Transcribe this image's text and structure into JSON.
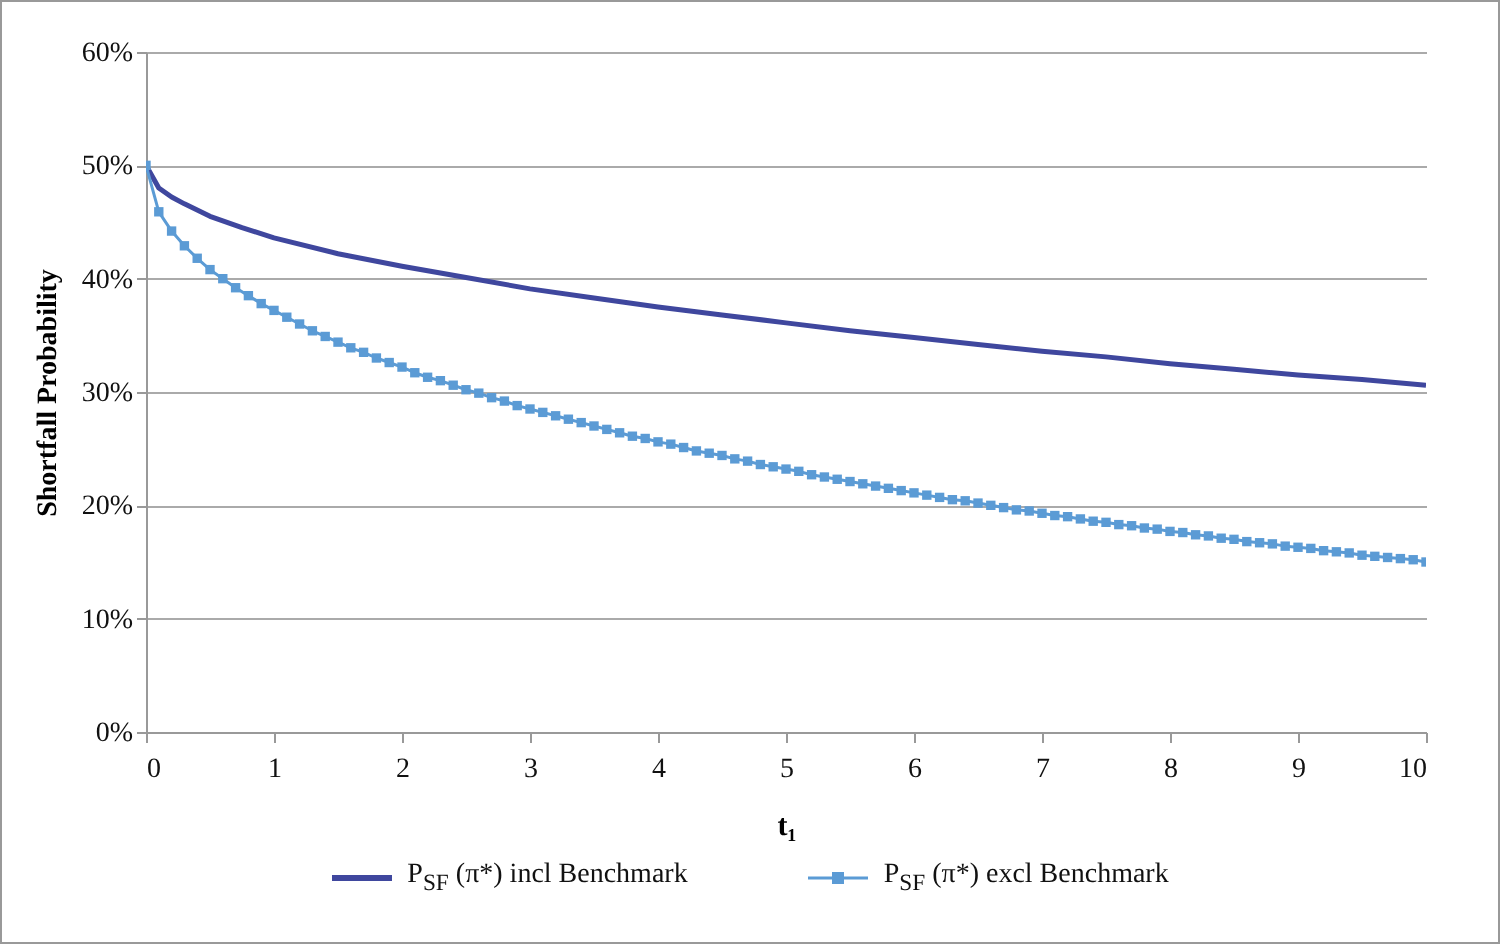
{
  "chart_data": {
    "type": "line",
    "xlabel": "t₁",
    "ylabel": "Shortfall Probability",
    "x": [
      0,
      0.1,
      0.2,
      0.3,
      0.4,
      0.5,
      0.6,
      0.7,
      0.8,
      0.9,
      1,
      1.1,
      1.2,
      1.3,
      1.4,
      1.5,
      1.6,
      1.7,
      1.8,
      1.9,
      2,
      2.1,
      2.2,
      2.3,
      2.4,
      2.5,
      2.6,
      2.7,
      2.8,
      2.9,
      3,
      3.1,
      3.2,
      3.3,
      3.4,
      3.5,
      3.6,
      3.7,
      3.8,
      3.9,
      4,
      4.1,
      4.2,
      4.3,
      4.4,
      4.5,
      4.6,
      4.7,
      4.8,
      4.9,
      5,
      5.1,
      5.2,
      5.3,
      5.4,
      5.5,
      5.6,
      5.7,
      5.8,
      5.9,
      6,
      6.1,
      6.2,
      6.3,
      6.4,
      6.5,
      6.6,
      6.7,
      6.8,
      6.9,
      7,
      7.1,
      7.2,
      7.3,
      7.4,
      7.5,
      7.6,
      7.7,
      7.8,
      7.9,
      8,
      8.1,
      8.2,
      8.3,
      8.4,
      8.5,
      8.6,
      8.7,
      8.8,
      8.9,
      9,
      9.1,
      9.2,
      9.3,
      9.4,
      9.5,
      9.6,
      9.7,
      9.8,
      9.9,
      10
    ],
    "series": [
      {
        "name": "P$_{SF}$ (π*) incl Benchmark",
        "color": "#3f479e",
        "marker": "none",
        "x": [
          0,
          0.1,
          0.2,
          0.3,
          0.5,
          0.75,
          1,
          1.5,
          2,
          2.5,
          3,
          3.5,
          4,
          4.5,
          5,
          5.5,
          6,
          6.5,
          7,
          7.5,
          8,
          8.5,
          9,
          9.5,
          10
        ],
        "values": [
          50,
          48.0,
          47.2,
          46.6,
          45.5,
          44.5,
          43.6,
          42.2,
          41.1,
          40.1,
          39.1,
          38.3,
          37.5,
          36.8,
          36.1,
          35.4,
          34.8,
          34.2,
          33.6,
          33.1,
          32.5,
          32.0,
          31.5,
          31.1,
          30.6
        ]
      },
      {
        "name": "P$_{SF}$ (π*) excl Benchmark",
        "color": "#5b9bd5",
        "marker": "square",
        "values": [
          50,
          45.9,
          44.2,
          42.9,
          41.8,
          40.8,
          40.0,
          39.2,
          38.5,
          37.8,
          37.2,
          36.6,
          36.0,
          35.4,
          34.9,
          34.4,
          33.9,
          33.5,
          33.0,
          32.6,
          32.2,
          31.7,
          31.3,
          31.0,
          30.6,
          30.2,
          29.9,
          29.5,
          29.2,
          28.8,
          28.5,
          28.2,
          27.9,
          27.6,
          27.3,
          27.0,
          26.7,
          26.4,
          26.1,
          25.9,
          25.6,
          25.4,
          25.1,
          24.8,
          24.6,
          24.4,
          24.1,
          23.9,
          23.6,
          23.4,
          23.2,
          23.0,
          22.7,
          22.5,
          22.3,
          22.1,
          21.9,
          21.7,
          21.5,
          21.3,
          21.1,
          20.9,
          20.7,
          20.5,
          20.4,
          20.2,
          20.0,
          19.8,
          19.6,
          19.5,
          19.3,
          19.1,
          19.0,
          18.8,
          18.6,
          18.5,
          18.3,
          18.2,
          18.0,
          17.9,
          17.7,
          17.6,
          17.4,
          17.3,
          17.1,
          17.0,
          16.8,
          16.7,
          16.6,
          16.4,
          16.3,
          16.2,
          16.0,
          15.9,
          15.8,
          15.6,
          15.5,
          15.4,
          15.3,
          15.2,
          15.0
        ]
      }
    ],
    "xlim": [
      0,
      10
    ],
    "xticks": [
      0,
      1,
      2,
      3,
      4,
      5,
      6,
      7,
      8,
      9,
      10
    ],
    "ylim": [
      0,
      60
    ],
    "yticks": [
      {
        "value": 0,
        "label": "0%"
      },
      {
        "value": 10,
        "label": "10%"
      },
      {
        "value": 20,
        "label": "20%"
      },
      {
        "value": 30,
        "label": "30%"
      },
      {
        "value": 40,
        "label": "40%"
      },
      {
        "value": 50,
        "label": "50%"
      },
      {
        "value": 60,
        "label": "60%"
      }
    ],
    "grid": "y",
    "legend": "bottom"
  }
}
